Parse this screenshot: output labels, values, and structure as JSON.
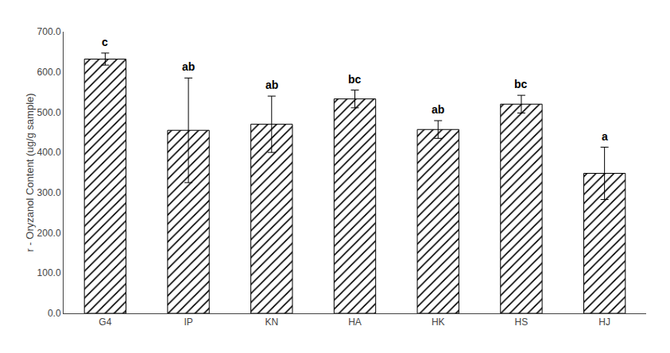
{
  "chart_data": {
    "type": "bar",
    "categories": [
      "G4",
      "IP",
      "KN",
      "HA",
      "HK",
      "HS",
      "HJ"
    ],
    "values": [
      632,
      455,
      470,
      533,
      457,
      520,
      348
    ],
    "errors": [
      15,
      130,
      70,
      22,
      22,
      22,
      65
    ],
    "annotations": [
      {
        "x": "G4",
        "text": "c"
      },
      {
        "x": "IP",
        "text": "ab"
      },
      {
        "x": "KN",
        "text": "ab"
      },
      {
        "x": "HA",
        "text": "bc"
      },
      {
        "x": "HK",
        "text": "ab"
      },
      {
        "x": "HS",
        "text": "bc"
      },
      {
        "x": "HJ",
        "text": "a"
      }
    ],
    "color": "#ffffff",
    "ylabel": "r - Oryzanol Content (ug/g sample)",
    "ylim": [
      0,
      700
    ],
    "yticks": [
      {
        "value": 0,
        "label": "0.0"
      },
      {
        "value": 100,
        "label": "100.0"
      },
      {
        "value": 200,
        "label": "200.0"
      },
      {
        "value": 300,
        "label": "300.0"
      },
      {
        "value": 400,
        "label": "400.0"
      },
      {
        "value": 500,
        "label": "500.0"
      },
      {
        "value": 600,
        "label": "600.0"
      },
      {
        "value": 700,
        "label": "700.0"
      }
    ],
    "grid": false
  }
}
